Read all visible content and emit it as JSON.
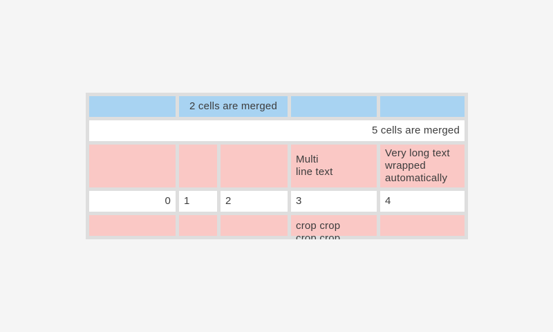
{
  "page": {
    "background_color": "#f5f5f5"
  },
  "table": {
    "widget": "table",
    "background_color": "#dedede",
    "cell_colors": {
      "blue": "#a8d3f2",
      "pink": "#fac8c5",
      "white": "#ffffff"
    },
    "text_color": "#3c3c3c",
    "rows": [
      {
        "cells": [
          {
            "text": "",
            "bg": "blue"
          },
          {
            "text": "2 cells are merged",
            "bg": "blue",
            "span": 2,
            "align": "center"
          },
          {
            "text": "",
            "bg": "blue"
          },
          {
            "text": "",
            "bg": "blue"
          }
        ]
      },
      {
        "cells": [
          {
            "text": "5 cells are merged",
            "bg": "white",
            "span": 5,
            "align": "right"
          }
        ]
      },
      {
        "cells": [
          {
            "text": "",
            "bg": "pink"
          },
          {
            "text": "",
            "bg": "pink"
          },
          {
            "text": "",
            "bg": "pink"
          },
          {
            "text": "Multi\nline text",
            "bg": "pink",
            "multiline": true
          },
          {
            "text": "Very long text wrapped automatically",
            "bg": "pink",
            "wrap": true
          }
        ]
      },
      {
        "cells": [
          {
            "text": "0",
            "bg": "white",
            "align": "right"
          },
          {
            "text": "1",
            "bg": "white"
          },
          {
            "text": "2",
            "bg": "white"
          },
          {
            "text": "3",
            "bg": "white"
          },
          {
            "text": "4",
            "bg": "white"
          }
        ]
      },
      {
        "cells": [
          {
            "text": "",
            "bg": "pink"
          },
          {
            "text": "",
            "bg": "pink"
          },
          {
            "text": "",
            "bg": "pink"
          },
          {
            "text": "crop crop crop crop",
            "bg": "pink",
            "crop": true
          },
          {
            "text": "",
            "bg": "pink"
          }
        ]
      }
    ]
  }
}
